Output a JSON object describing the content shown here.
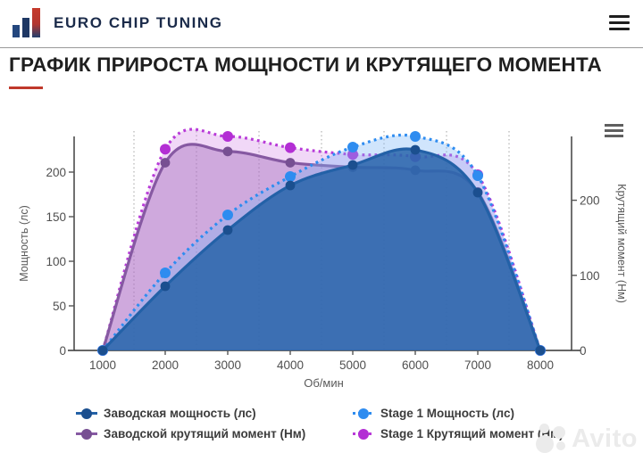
{
  "header": {
    "brand": "EURO CHIP TUNING"
  },
  "title": {
    "text": "ГРАФИК ПРИРОСТА МОЩНОСТИ И КРУТЯЩЕГО МОМЕНТА"
  },
  "watermark": {
    "text": "Avito"
  },
  "chart_data": {
    "type": "area",
    "x": [
      1000,
      2000,
      3000,
      4000,
      5000,
      6000,
      7000,
      8000
    ],
    "xlabel": "Об/мин",
    "x_ticks": [
      1000,
      2000,
      3000,
      4000,
      5000,
      6000,
      7000,
      8000
    ],
    "minor_gridlines_x": [
      1500,
      2500,
      3500,
      4500,
      5500,
      6500,
      7500
    ],
    "y_left": {
      "label": "Мощность (лс)",
      "ticks": [
        0,
        50,
        100,
        150,
        200
      ],
      "lim": [
        0,
        240
      ]
    },
    "y_right": {
      "label": "Крутящий момент (Нм)",
      "ticks": [
        0,
        100,
        200
      ],
      "lim": [
        0,
        285
      ]
    },
    "legend_position": "bottom",
    "grid": "vertical-dotted-only",
    "series": [
      {
        "name": "Заводская мощность (лс)",
        "axis": "left",
        "style": "solid",
        "color": "#2361a7",
        "fill": "rgba(37,99,169,0.84)",
        "marker": "#1b4f8f",
        "values": [
          0,
          72,
          135,
          185,
          208,
          225,
          177,
          0
        ]
      },
      {
        "name": "Stage 1 Мощность (лс)",
        "axis": "left",
        "style": "dotted",
        "color": "#2e8cf0",
        "fill": "rgba(120,180,245,0.35)",
        "marker": "#2e8cf0",
        "values": [
          0,
          87,
          152,
          195,
          228,
          240,
          196,
          0
        ]
      },
      {
        "name": "Заводской крутящий момент (Нм)",
        "axis": "right",
        "style": "solid",
        "color": "#8659a2",
        "fill": "rgba(160,105,185,0.42)",
        "marker": "#774f92",
        "values": [
          0,
          250,
          265,
          250,
          244,
          240,
          211,
          0
        ]
      },
      {
        "name": "Stage 1 Крутящий момент (Нм)",
        "axis": "right",
        "style": "dotted",
        "color": "#b83ad8",
        "fill": "rgba(205,115,225,0.28)",
        "marker": "#b32fd4",
        "values": [
          0,
          268,
          285,
          270,
          261,
          258,
          234,
          0
        ]
      }
    ]
  }
}
